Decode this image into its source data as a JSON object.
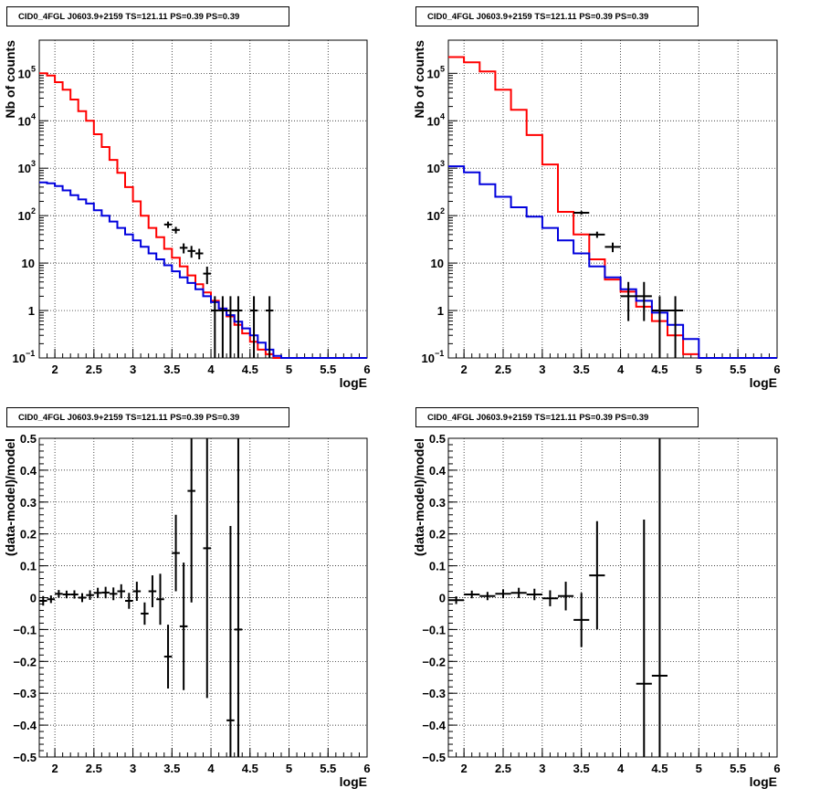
{
  "chart_data": [
    {
      "type": "histogram",
      "title": "CID0_4FGL J0603.9+2159 TS=121.11 PS=0.39 PS=0.39",
      "xlabel": "logE",
      "ylabel": "Nb of counts",
      "xlim": [
        1.8,
        6.0
      ],
      "ylim": [
        0.1,
        500000
      ],
      "yscale": "log",
      "grid": true,
      "xticks": [
        "2",
        "2.5",
        "3",
        "3.5",
        "4",
        "4.5",
        "5",
        "5.5",
        "6"
      ],
      "yticks": [
        {
          "value": 0.1,
          "base": "10",
          "exp": "−1"
        },
        {
          "value": 1,
          "base": "1",
          "exp": ""
        },
        {
          "value": 10,
          "base": "10",
          "exp": ""
        },
        {
          "value": 100,
          "base": "10",
          "exp": "2"
        },
        {
          "value": 1000,
          "base": "10",
          "exp": "3"
        },
        {
          "value": 10000,
          "base": "10",
          "exp": "4"
        },
        {
          "value": 100000,
          "base": "10",
          "exp": "5"
        }
      ],
      "series": [
        {
          "color": "#ff0000",
          "style": "step",
          "edges": [
            1.8,
            1.9,
            2.0,
            2.1,
            2.2,
            2.3,
            2.4,
            2.5,
            2.6,
            2.7,
            2.8,
            2.9,
            3.0,
            3.1,
            3.2,
            3.3,
            3.4,
            3.5,
            3.6,
            3.7,
            3.8,
            3.9,
            4.0,
            4.1,
            4.2,
            4.3,
            4.4,
            4.5,
            4.6,
            4.7,
            4.8,
            4.9,
            5.0,
            5.1,
            5.2,
            5.3,
            5.4,
            5.5,
            5.6,
            5.7,
            5.8,
            5.9,
            6.0
          ],
          "values": [
            100000,
            90000,
            65000,
            45000,
            28000,
            16000,
            10000,
            5200,
            2800,
            1500,
            800,
            400,
            200,
            100,
            55,
            35,
            20,
            13,
            8.5,
            5.5,
            3.6,
            2.4,
            1.6,
            1.1,
            0.75,
            0.5,
            0.33,
            0.22,
            0.15,
            0.12,
            0.1,
            0.1,
            0.1,
            0.1,
            0.1,
            0.1,
            0.1,
            0.1,
            0.1,
            0.1,
            0.1,
            0.1
          ]
        },
        {
          "color": "#0000dd",
          "style": "step",
          "edges": [
            1.8,
            1.9,
            2.0,
            2.1,
            2.2,
            2.3,
            2.4,
            2.5,
            2.6,
            2.7,
            2.8,
            2.9,
            3.0,
            3.1,
            3.2,
            3.3,
            3.4,
            3.5,
            3.6,
            3.7,
            3.8,
            3.9,
            4.0,
            4.1,
            4.2,
            4.3,
            4.4,
            4.5,
            4.6,
            4.7,
            4.8,
            4.9,
            5.0,
            5.1,
            5.2,
            5.3,
            5.4,
            5.5,
            5.6,
            5.7,
            5.8,
            5.9,
            6.0
          ],
          "values": [
            500,
            480,
            420,
            340,
            270,
            220,
            180,
            130,
            100,
            75,
            55,
            40,
            30,
            22,
            16,
            12,
            9,
            6.7,
            5,
            3.8,
            2.8,
            2.0,
            1.5,
            1.1,
            0.8,
            0.58,
            0.42,
            0.3,
            0.21,
            0.15,
            0.11,
            0.1,
            0.1,
            0.1,
            0.1,
            0.1,
            0.1,
            0.1,
            0.1,
            0.1,
            0.1,
            0.1
          ]
        }
      ],
      "points": {
        "color": "#000000",
        "x": [
          3.45,
          3.55,
          3.65,
          3.75,
          3.85,
          3.95,
          4.05,
          4.15,
          4.25,
          4.35,
          4.55,
          4.75
        ],
        "xerr": 0.05,
        "y": [
          65,
          50,
          21,
          18,
          16,
          6,
          1,
          1,
          1,
          1,
          1,
          1
        ],
        "ylow": [
          55,
          42,
          16,
          13,
          12,
          3.6,
          0.1,
          0.1,
          0.1,
          0.1,
          0.1,
          0.1
        ],
        "yhigh": [
          75,
          58,
          26,
          23,
          20,
          8.4,
          2,
          2,
          2,
          2,
          2,
          2
        ]
      }
    },
    {
      "type": "histogram",
      "title": "CID0_4FGL J0603.9+2159 TS=121.11 PS=0.39 PS=0.39",
      "xlabel": "logE",
      "ylabel": "Nb of counts",
      "xlim": [
        1.8,
        6.0
      ],
      "ylim": [
        0.1,
        500000
      ],
      "yscale": "log",
      "grid": true,
      "xticks": [
        "2",
        "2.5",
        "3",
        "3.5",
        "4",
        "4.5",
        "5",
        "5.5",
        "6"
      ],
      "yticks": [
        {
          "value": 0.1,
          "base": "10",
          "exp": "−1"
        },
        {
          "value": 1,
          "base": "1",
          "exp": ""
        },
        {
          "value": 10,
          "base": "10",
          "exp": ""
        },
        {
          "value": 100,
          "base": "10",
          "exp": "2"
        },
        {
          "value": 1000,
          "base": "10",
          "exp": "3"
        },
        {
          "value": 10000,
          "base": "10",
          "exp": "4"
        },
        {
          "value": 100000,
          "base": "10",
          "exp": "5"
        }
      ],
      "series": [
        {
          "color": "#ff0000",
          "style": "step",
          "edges": [
            1.8,
            2.0,
            2.2,
            2.4,
            2.6,
            2.8,
            3.0,
            3.2,
            3.4,
            3.6,
            3.8,
            4.0,
            4.2,
            4.4,
            4.6,
            4.8,
            5.0,
            5.2,
            5.4,
            5.6,
            5.8,
            6.0
          ],
          "values": [
            220000,
            170000,
            110000,
            45000,
            17000,
            5000,
            1200,
            120,
            40,
            12,
            4.5,
            2.5,
            1.2,
            0.6,
            0.3,
            0.12,
            0.1,
            0.1,
            0.1,
            0.1,
            0.1
          ]
        },
        {
          "color": "#0000dd",
          "style": "step",
          "edges": [
            1.8,
            2.0,
            2.2,
            2.4,
            2.6,
            2.8,
            3.0,
            3.2,
            3.4,
            3.6,
            3.8,
            4.0,
            4.2,
            4.4,
            4.6,
            4.8,
            5.0,
            5.2,
            5.4,
            5.6,
            5.8,
            6.0
          ],
          "values": [
            1100,
            820,
            460,
            250,
            150,
            95,
            55,
            30,
            16,
            8.5,
            5,
            2.8,
            1.6,
            0.9,
            0.5,
            0.25,
            0.1,
            0.1,
            0.1,
            0.1,
            0.1
          ]
        }
      ],
      "points": {
        "color": "#000000",
        "x": [
          3.5,
          3.7,
          3.9,
          4.1,
          4.3,
          4.5,
          4.7
        ],
        "xerr": 0.1,
        "y": [
          115,
          40,
          22,
          2,
          2,
          1,
          1
        ],
        "ylow": [
          105,
          34,
          17,
          0.6,
          0.6,
          0.1,
          0.1
        ],
        "yhigh": [
          125,
          46,
          27,
          4,
          4,
          2,
          2
        ]
      }
    },
    {
      "type": "scatter",
      "title": "CID0_4FGL J0603.9+2159 TS=121.11 PS=0.39 PS=0.39",
      "xlabel": "logE",
      "ylabel": "(data-model)/model",
      "xlim": [
        1.8,
        6.0
      ],
      "ylim": [
        -0.5,
        0.5
      ],
      "grid": true,
      "xticks": [
        "2",
        "2.5",
        "3",
        "3.5",
        "4",
        "4.5",
        "5",
        "5.5",
        "6"
      ],
      "yticks": [
        "−0.5",
        "−0.4",
        "−0.3",
        "−0.2",
        "−0.1",
        "0",
        "0.1",
        "0.2",
        "0.3",
        "0.4",
        "0.5"
      ],
      "points": {
        "color": "#000000",
        "xerr": 0.05,
        "x": [
          1.85,
          1.95,
          2.05,
          2.15,
          2.25,
          2.35,
          2.45,
          2.55,
          2.65,
          2.75,
          2.85,
          2.95,
          3.05,
          3.15,
          3.25,
          3.35,
          3.45,
          3.55,
          3.65,
          3.75,
          3.95,
          4.25,
          4.35
        ],
        "y": [
          -0.01,
          -0.005,
          0.012,
          0.01,
          0.01,
          0.0,
          0.008,
          0.015,
          0.016,
          0.012,
          0.02,
          -0.01,
          0.02,
          -0.05,
          0.02,
          -0.005,
          -0.185,
          0.14,
          -0.09,
          0.335,
          0.155,
          -0.385,
          -0.1
        ],
        "err": [
          0.015,
          0.012,
          0.012,
          0.012,
          0.013,
          0.014,
          0.015,
          0.016,
          0.018,
          0.02,
          0.022,
          0.025,
          0.03,
          0.035,
          0.05,
          0.08,
          0.1,
          0.12,
          0.2,
          0.35,
          0.47,
          0.61,
          0.6
        ]
      }
    },
    {
      "type": "scatter",
      "title": "CID0_4FGL J0603.9+2159 TS=121.11 PS=0.39 PS=0.39",
      "xlabel": "logE",
      "ylabel": "(data-model)/model",
      "xlim": [
        1.8,
        6.0
      ],
      "ylim": [
        -0.5,
        0.5
      ],
      "grid": true,
      "xticks": [
        "2",
        "2.5",
        "3",
        "3.5",
        "4",
        "4.5",
        "5",
        "5.5",
        "6"
      ],
      "yticks": [
        "−0.5",
        "−0.4",
        "−0.3",
        "−0.2",
        "−0.1",
        "0",
        "0.1",
        "0.2",
        "0.3",
        "0.4",
        "0.5"
      ],
      "points": {
        "color": "#000000",
        "xerr": 0.1,
        "x": [
          1.9,
          2.1,
          2.3,
          2.5,
          2.7,
          2.9,
          3.1,
          3.3,
          3.5,
          3.7,
          4.3,
          4.5
        ],
        "y": [
          -0.008,
          0.01,
          0.005,
          0.012,
          0.015,
          0.01,
          -0.002,
          0.005,
          -0.07,
          0.07,
          -0.27,
          -0.245
        ],
        "err": [
          0.012,
          0.012,
          0.013,
          0.014,
          0.016,
          0.018,
          0.025,
          0.045,
          0.085,
          0.17,
          0.515,
          0.75
        ]
      }
    }
  ]
}
